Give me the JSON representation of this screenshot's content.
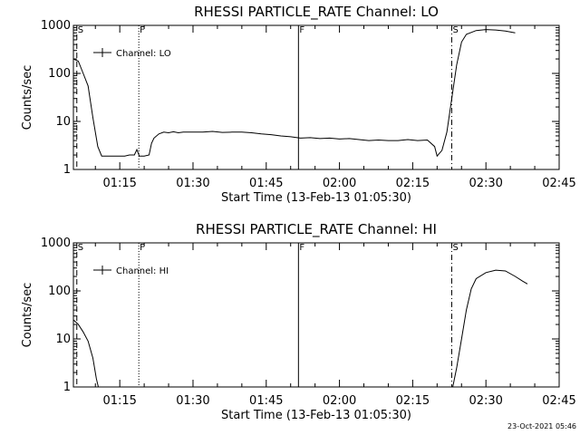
{
  "timestamp": "23-Oct-2021 05:46",
  "chart_data": [
    {
      "type": "line",
      "title": "RHESSI PARTICLE_RATE Channel: LO",
      "xlabel": "Start Time (13-Feb-13 01:05:30)",
      "ylabel": "Counts/sec",
      "yscale": "log",
      "xlim_minutes": [
        65.5,
        165
      ],
      "ylim": [
        1,
        1000
      ],
      "x_ticks": [
        "01:15",
        "01:30",
        "01:45",
        "02:00",
        "02:15",
        "02:30",
        "02:45"
      ],
      "y_ticks": [
        "1",
        "10",
        "100",
        "1000"
      ],
      "legend": "Channel: LO",
      "legend_position": "top-left",
      "series": [
        {
          "name": "Channel: LO",
          "points": [
            [
              65.5,
              200
            ],
            [
              66.5,
              180
            ],
            [
              67.5,
              100
            ],
            [
              68.5,
              55
            ],
            [
              69.5,
              12
            ],
            [
              70.5,
              3
            ],
            [
              71.3,
              1.9
            ],
            [
              72,
              1.9
            ],
            [
              73,
              1.9
            ],
            [
              74,
              1.9
            ],
            [
              75,
              1.9
            ],
            [
              76,
              1.9
            ],
            [
              77,
              2
            ],
            [
              78,
              2
            ],
            [
              78.5,
              2.6
            ],
            [
              79,
              1.9
            ],
            [
              80,
              1.9
            ],
            [
              81,
              2
            ],
            [
              81.5,
              3.5
            ],
            [
              82,
              4.5
            ],
            [
              83,
              5.5
            ],
            [
              84,
              6
            ],
            [
              85,
              5.8
            ],
            [
              86,
              6.1
            ],
            [
              87,
              5.8
            ],
            [
              88,
              6
            ],
            [
              90,
              6
            ],
            [
              92,
              6
            ],
            [
              94,
              6.2
            ],
            [
              96,
              5.9
            ],
            [
              98,
              6
            ],
            [
              100,
              6
            ],
            [
              102,
              5.8
            ],
            [
              104,
              5.5
            ],
            [
              106,
              5.3
            ],
            [
              108,
              5
            ],
            [
              110,
              4.8
            ],
            [
              112,
              4.5
            ],
            [
              114,
              4.6
            ],
            [
              116,
              4.4
            ],
            [
              118,
              4.5
            ],
            [
              120,
              4.3
            ],
            [
              122,
              4.4
            ],
            [
              124,
              4.2
            ],
            [
              126,
              4
            ],
            [
              128,
              4.1
            ],
            [
              130,
              4
            ],
            [
              132,
              4
            ],
            [
              134,
              4.2
            ],
            [
              136,
              4
            ],
            [
              138,
              4.1
            ],
            [
              139.5,
              3
            ],
            [
              140,
              1.9
            ],
            [
              141,
              2.5
            ],
            [
              142,
              6
            ],
            [
              143,
              30
            ],
            [
              144,
              150
            ],
            [
              145,
              450
            ],
            [
              146,
              650
            ],
            [
              148,
              780
            ],
            [
              150,
              820
            ],
            [
              152,
              800
            ],
            [
              154,
              760
            ],
            [
              156,
              700
            ]
          ]
        }
      ],
      "markers": [
        {
          "label": "S",
          "x_minutes": 66.2,
          "style": "dashed"
        },
        {
          "label": "F",
          "x_minutes": 78.9,
          "style": "dotted"
        },
        {
          "label": "F",
          "x_minutes": 111.6,
          "style": "solid"
        },
        {
          "label": "S",
          "x_minutes": 143.0,
          "style": "dash-dot"
        }
      ]
    },
    {
      "type": "line",
      "title": "RHESSI PARTICLE_RATE Channel: HI",
      "xlabel": "Start Time (13-Feb-13 01:05:30)",
      "ylabel": "Counts/sec",
      "yscale": "log",
      "xlim_minutes": [
        65.5,
        165
      ],
      "ylim": [
        1,
        1000
      ],
      "x_ticks": [
        "01:15",
        "01:30",
        "01:45",
        "02:00",
        "02:15",
        "02:30",
        "02:45"
      ],
      "y_ticks": [
        "1",
        "10",
        "100",
        "1000"
      ],
      "legend": "Channel: HI",
      "legend_position": "top-left",
      "series": [
        {
          "name": "Channel: HI",
          "points": [
            [
              65.5,
              25
            ],
            [
              66.5,
              20
            ],
            [
              67.5,
              14
            ],
            [
              68.5,
              9
            ],
            [
              69.5,
              4
            ],
            [
              70.2,
              1.5
            ],
            [
              70.6,
              1
            ]
          ]
        },
        {
          "name": "Channel: HI",
          "points": [
            [
              143.2,
              1
            ],
            [
              144,
              2.5
            ],
            [
              145,
              10
            ],
            [
              146,
              40
            ],
            [
              147,
              110
            ],
            [
              148,
              180
            ],
            [
              150,
              240
            ],
            [
              152,
              270
            ],
            [
              154,
              260
            ],
            [
              156,
              200
            ],
            [
              157.5,
              160
            ],
            [
              158.5,
              140
            ]
          ]
        }
      ],
      "markers": [
        {
          "label": "S",
          "x_minutes": 66.2,
          "style": "dashed"
        },
        {
          "label": "F",
          "x_minutes": 78.9,
          "style": "dotted"
        },
        {
          "label": "F",
          "x_minutes": 111.6,
          "style": "solid"
        },
        {
          "label": "S",
          "x_minutes": 143.0,
          "style": "dash-dot"
        }
      ]
    }
  ]
}
